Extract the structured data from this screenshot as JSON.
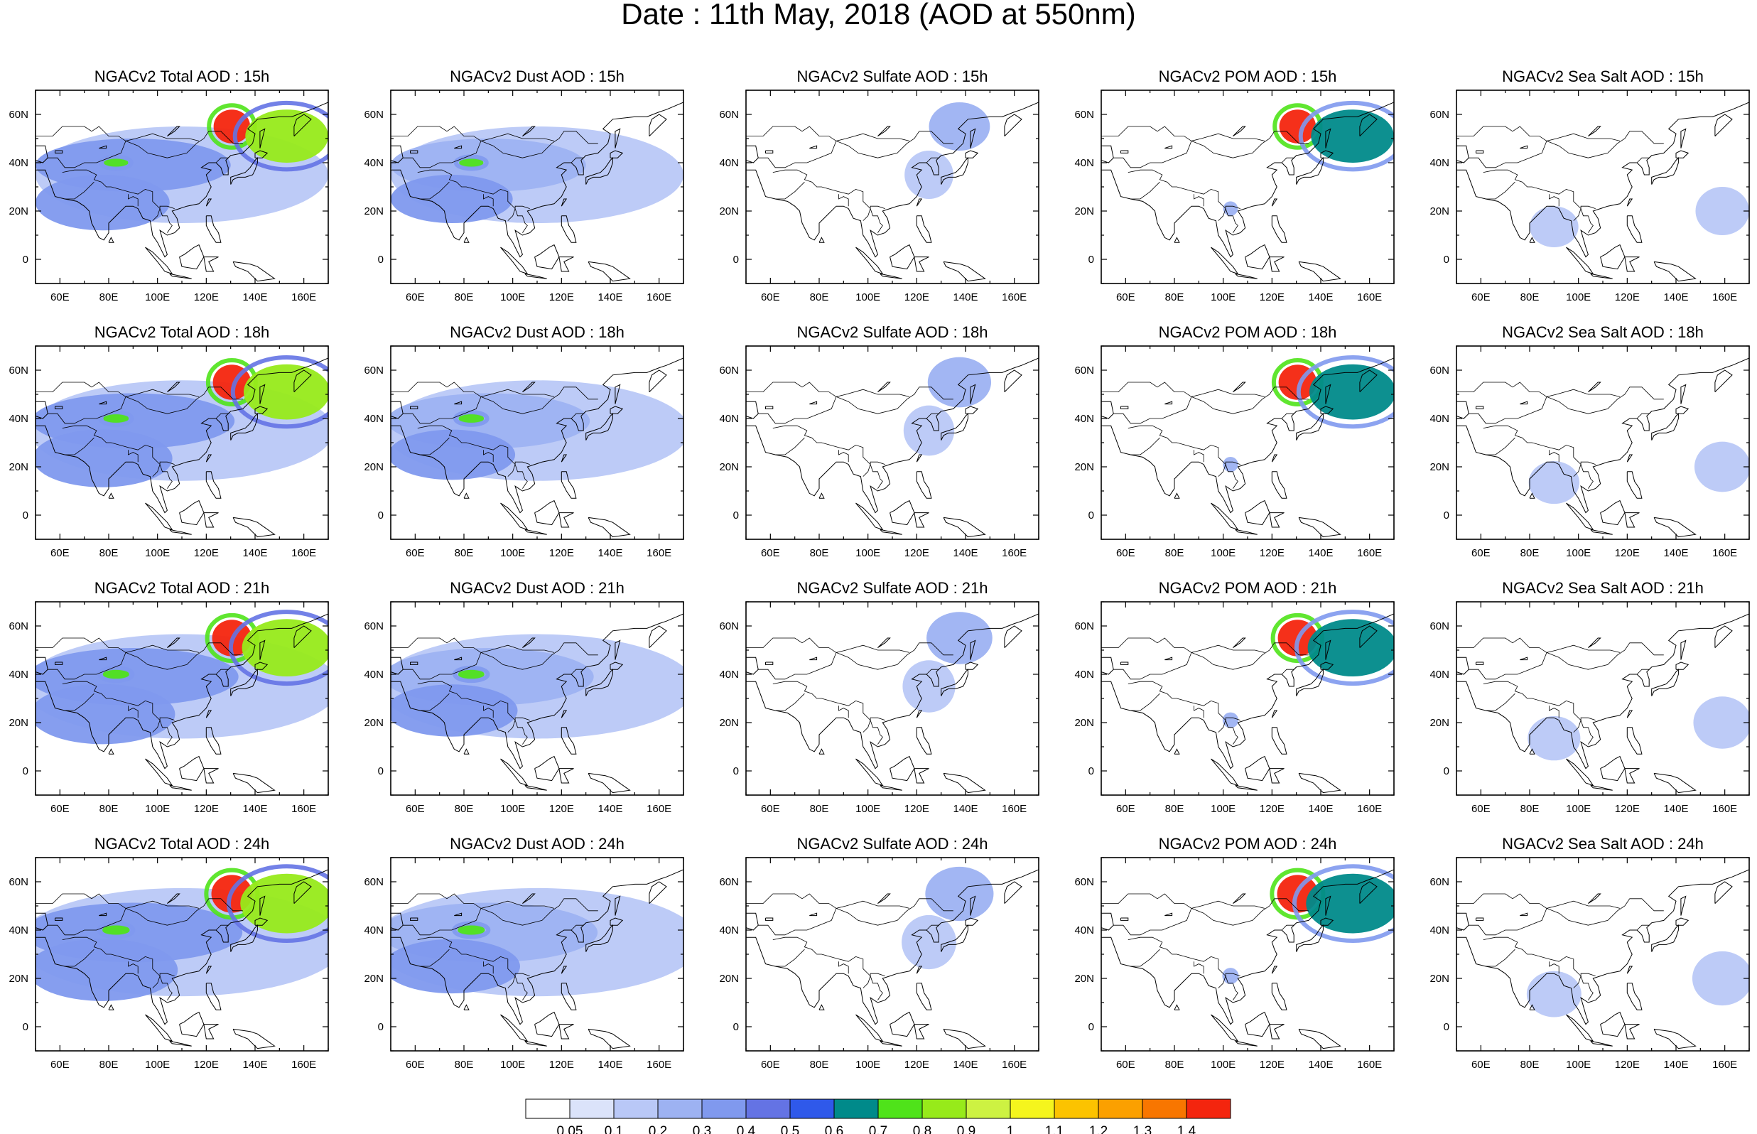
{
  "title": "Date : 11th May, 2018 (AOD at 550nm)",
  "columns": [
    {
      "key": "total",
      "titles": [
        "NGACv2 Total AOD : 15h",
        "NGACv2 Total AOD : 18h",
        "NGACv2 Total AOD : 21h",
        "NGACv2 Total AOD : 24h"
      ]
    },
    {
      "key": "dust",
      "titles": [
        "NGACv2 Dust AOD : 15h",
        "NGACv2 Dust AOD : 18h",
        "NGACv2 Dust AOD : 21h",
        "NGACv2 Dust AOD : 24h"
      ]
    },
    {
      "key": "sulfate",
      "titles": [
        "NGACv2 Sulfate AOD : 15h",
        "NGACv2 Sulfate AOD : 18h",
        "NGACv2 Sulfate AOD : 21h",
        "NGACv2 Sulfate AOD : 24h"
      ]
    },
    {
      "key": "pom",
      "titles": [
        "NGACv2 POM AOD : 15h",
        "NGACv2 POM AOD : 18h",
        "NGACv2 POM AOD : 21h",
        "NGACv2 POM AOD : 24h"
      ]
    },
    {
      "key": "seasalt",
      "titles": [
        "NGACv2 Sea Salt AOD : 15h",
        "NGACv2 Sea Salt AOD : 18h",
        "NGACv2 Sea Salt AOD : 21h",
        "NGACv2 Sea Salt  AOD : 24h"
      ]
    }
  ],
  "map": {
    "lon_range": [
      50,
      170
    ],
    "lat_range": [
      -10,
      70
    ],
    "lon_ticks": [
      60,
      80,
      100,
      120,
      140,
      160
    ],
    "lon_tick_labels": [
      "60E",
      "80E",
      "100E",
      "120E",
      "140E",
      "160E"
    ],
    "lat_ticks": [
      0,
      20,
      40,
      60
    ],
    "lat_tick_labels": [
      "0",
      "20N",
      "40N",
      "60N"
    ]
  },
  "colorbar": {
    "labels": [
      "0.05",
      "0.1",
      "0.2",
      "0.3",
      "0.4",
      "0.5",
      "0.6",
      "0.7",
      "0.8",
      "0.9",
      "1",
      "1.1",
      "1.2",
      "1.3",
      "1.4"
    ],
    "colors": [
      "#ffffff",
      "#dbe3fa",
      "#b9c8f7",
      "#9db2f2",
      "#8099ee",
      "#6473e4",
      "#2f59ea",
      "#008a8a",
      "#4fe31a",
      "#97ea1a",
      "#cdf242",
      "#f5f51d",
      "#fcc300",
      "#fba000",
      "#f87600",
      "#f4250e"
    ]
  },
  "chart_data": {
    "type": "heatmap",
    "variable": "AOD at 550nm",
    "date": "11th May, 2018",
    "rows": [
      "15h",
      "18h",
      "21h",
      "24h"
    ],
    "cols": [
      "Total",
      "Dust",
      "Sulfate",
      "POM",
      "Sea Salt"
    ],
    "levels": [
      0.05,
      0.1,
      0.2,
      0.3,
      0.4,
      0.5,
      0.6,
      0.7,
      0.8,
      0.9,
      1,
      1.1,
      1.2,
      1.3,
      1.4
    ],
    "features": {
      "total": [
        {
          "name": "background",
          "lon": [
            50,
            170
          ],
          "lat": [
            15,
            55
          ],
          "aod": 0.1
        },
        {
          "name": "dust-belt",
          "lon": [
            50,
            130
          ],
          "lat": [
            28,
            50
          ],
          "aod": 0.3
        },
        {
          "name": "south-asia",
          "lon": [
            50,
            105
          ],
          "lat": [
            12,
            35
          ],
          "aod": 0.3
        },
        {
          "name": "tarim-peak",
          "lon": [
            78,
            88
          ],
          "lat": [
            38,
            42
          ],
          "aod": 0.7
        },
        {
          "name": "ne-china-fire",
          "lon": [
            123,
            138
          ],
          "lat": [
            48,
            62
          ],
          "aod": 1.4
        },
        {
          "name": "kamchatka-plume",
          "lon": [
            136,
            170
          ],
          "lat": [
            40,
            62
          ],
          "aod": 0.8
        }
      ],
      "dust": [
        {
          "name": "background",
          "lon": [
            50,
            170
          ],
          "lat": [
            15,
            55
          ],
          "aod": 0.1
        },
        {
          "name": "dust-belt",
          "lon": [
            50,
            130
          ],
          "lat": [
            28,
            50
          ],
          "aod": 0.2
        },
        {
          "name": "south-asia",
          "lon": [
            50,
            100
          ],
          "lat": [
            15,
            35
          ],
          "aod": 0.3
        },
        {
          "name": "tarim-peak",
          "lon": [
            78,
            88
          ],
          "lat": [
            38,
            42
          ],
          "aod": 0.7
        }
      ],
      "sulfate": [
        {
          "name": "east-china",
          "lon": [
            115,
            135
          ],
          "lat": [
            25,
            45
          ],
          "aod": 0.1
        },
        {
          "name": "ne-plume",
          "lon": [
            125,
            150
          ],
          "lat": [
            45,
            65
          ],
          "aod": 0.2
        }
      ],
      "pom": [
        {
          "name": "ne-china-fire",
          "lon": [
            123,
            138
          ],
          "lat": [
            48,
            62
          ],
          "aod": 1.4
        },
        {
          "name": "kamchatka-plume",
          "lon": [
            136,
            170
          ],
          "lat": [
            40,
            62
          ],
          "aod": 0.6
        },
        {
          "name": "indochina",
          "lon": [
            100,
            106
          ],
          "lat": [
            18,
            24
          ],
          "aod": 0.2
        }
      ],
      "seasalt": [
        {
          "name": "bay-of-bengal",
          "lon": [
            80,
            100
          ],
          "lat": [
            5,
            22
          ],
          "aod": 0.1
        },
        {
          "name": "pacific",
          "lon": [
            148,
            170
          ],
          "lat": [
            10,
            30
          ],
          "aod": 0.1
        }
      ]
    }
  }
}
